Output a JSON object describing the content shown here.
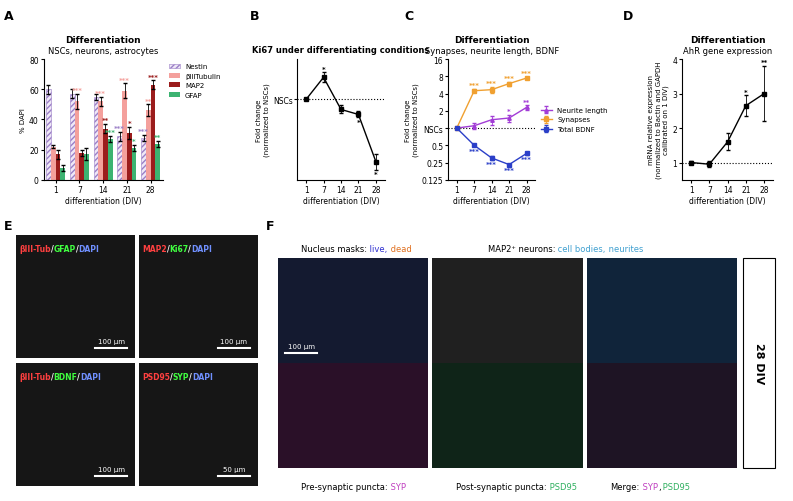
{
  "chart_data": [
    {
      "panel_label": "A",
      "type": "bar",
      "title": "Differentiation",
      "subtitle": "NSCs, neurons, astrocytes",
      "x_label": "differentiation (DIV)",
      "y_label": "% DAPI",
      "categories": [
        "1",
        "7",
        "14",
        "21",
        "28"
      ],
      "ylim": [
        0,
        80
      ],
      "yticks": [
        0,
        20,
        40,
        60,
        80
      ],
      "legend": "upper left",
      "series": [
        {
          "name": "Nestin",
          "color": "#9b7fc7",
          "values": [
            60,
            57,
            55,
            29,
            28
          ],
          "errors": [
            3,
            3,
            2,
            3,
            2
          ],
          "significance": [
            null,
            null,
            null,
            "***",
            "***"
          ]
        },
        {
          "name": "βIIITubulin",
          "color": "#f4a09c",
          "values": [
            22,
            52,
            52,
            59,
            46
          ],
          "errors": [
            1,
            5,
            3,
            5,
            4
          ],
          "significance": [
            null,
            "***",
            "***",
            "***",
            "**"
          ]
        },
        {
          "name": "MAP2",
          "color": "#9b1c1c",
          "values": [
            17,
            18,
            34,
            31,
            63
          ],
          "errors": [
            3,
            2,
            3,
            4,
            3
          ],
          "significance": [
            null,
            null,
            "**",
            "*",
            "***"
          ]
        },
        {
          "name": "GFAP",
          "color": "#3cb371",
          "values": [
            8,
            17,
            27,
            21,
            24
          ],
          "errors": [
            2,
            4,
            2,
            2,
            2
          ],
          "significance": [
            null,
            null,
            "***",
            "*",
            "**"
          ]
        }
      ]
    },
    {
      "panel_label": "B",
      "type": "line",
      "title": "Ki67 under differentiating conditions",
      "x_label": "differentiation (DIV)",
      "y_label": "Fold change\n(normalized to NSCs)",
      "categories": [
        "1",
        "7",
        "14",
        "21",
        "28"
      ],
      "ylim": [
        0.2,
        1.4
      ],
      "yticks": [
        {
          "value": 1,
          "label": "NSCs"
        }
      ],
      "baseline": 1,
      "series": [
        {
          "color": "#000000",
          "marker": "square",
          "values": [
            1,
            1.22,
            0.9,
            0.85,
            0.38
          ],
          "errors": [
            0,
            0.05,
            0.04,
            0.03,
            0.08
          ],
          "significance": [
            null,
            "*",
            null,
            "*",
            "*"
          ]
        }
      ]
    },
    {
      "panel_label": "C",
      "type": "line",
      "title": "Differentiation",
      "subtitle": "Synapses, neurite length, BDNF",
      "x_label": "differentiation (DIV)",
      "y_label": "Fold change\n(normalized to NSCs)",
      "categories": [
        "1",
        "7",
        "14",
        "21",
        "28"
      ],
      "log": "y",
      "ylim": [
        0.125,
        16
      ],
      "yticks": [
        0.125,
        0.25,
        0.5,
        {
          "value": 1,
          "label": "NSCs"
        },
        2,
        4,
        8,
        16
      ],
      "baseline": 1,
      "legend": "center left",
      "series": [
        {
          "name": "Neurite length",
          "color": "#a23cd6",
          "marker": "triangle",
          "values": [
            1,
            1.1,
            1.4,
            1.5,
            2.3
          ],
          "errors": [
            0,
            0.15,
            0.25,
            0.2,
            0.2
          ],
          "significance": [
            null,
            null,
            null,
            "*",
            "**"
          ]
        },
        {
          "name": "Synapses",
          "color": "#f0a030",
          "marker": "square",
          "values": [
            1,
            4.5,
            4.7,
            6,
            7.5
          ],
          "errors": [
            0,
            0.3,
            0.6,
            0.5,
            0.4
          ],
          "significance": [
            null,
            "***",
            "***",
            "***",
            "***"
          ]
        },
        {
          "name": "Total BDNF",
          "color": "#2b3fc8",
          "marker": "square",
          "values": [
            1,
            0.5,
            0.3,
            0.23,
            0.36
          ],
          "errors": [
            0,
            0.02,
            0.02,
            0.01,
            0.02
          ],
          "significance": [
            null,
            "***",
            "***",
            "***",
            "***"
          ]
        }
      ]
    },
    {
      "panel_label": "D",
      "type": "line",
      "title": "Differentiation",
      "subtitle": "AhR gene expression",
      "x_label": "differentiation (DIV)",
      "y_label": "mRNA relative expression\n(normalized to Bactin and GAPDH\ncalibrated on 1 DIV)",
      "categories": [
        "1",
        "7",
        "14",
        "21",
        "28"
      ],
      "ylim": [
        0.5,
        4
      ],
      "yticks": [
        1,
        2,
        3,
        4
      ],
      "baseline": 1,
      "series": [
        {
          "color": "#000000",
          "marker": "square",
          "values": [
            1,
            0.95,
            1.6,
            2.65,
            3.0
          ],
          "errors": [
            0.03,
            0.08,
            0.25,
            0.3,
            0.8
          ],
          "significance": [
            null,
            null,
            null,
            "*",
            "**"
          ]
        }
      ]
    }
  ],
  "panel_E": {
    "panel_label": "E",
    "separator": "/",
    "separator_color": "#ffffff",
    "images": [
      {
        "channels": [
          {
            "text": "βIII-Tub",
            "color": "#ff4040"
          },
          {
            "text": "GFAP",
            "color": "#40ff40"
          },
          {
            "text": "DAPI",
            "color": "#7090ff"
          }
        ],
        "scale_bar": "100 µm"
      },
      {
        "channels": [
          {
            "text": "MAP2",
            "color": "#ff4040"
          },
          {
            "text": "Ki67",
            "color": "#40ff40"
          },
          {
            "text": "DAPI",
            "color": "#7090ff"
          }
        ],
        "scale_bar": "100 µm"
      },
      {
        "channels": [
          {
            "text": "βIII-Tub",
            "color": "#ff4040"
          },
          {
            "text": "BDNF",
            "color": "#40ff40"
          },
          {
            "text": "DAPI",
            "color": "#7090ff"
          }
        ],
        "scale_bar": "100 µm"
      },
      {
        "channels": [
          {
            "text": "PSD95",
            "color": "#ff4040"
          },
          {
            "text": "SYP",
            "color": "#40ff40"
          },
          {
            "text": "DAPI",
            "color": "#7090ff"
          }
        ],
        "scale_bar": "50 µm"
      }
    ]
  },
  "panel_F": {
    "panel_label": "F",
    "side_label": "28 DIV",
    "scale_bar": "100 µm",
    "headers": [
      [
        {
          "text": "Nucleus masks:",
          "color": "#000000"
        },
        {
          "text": " live,",
          "color": "#3030d0"
        },
        {
          "text": " dead",
          "color": "#e07020"
        }
      ],
      [
        {
          "text": "MAP2⁺ neurons:",
          "color": "#000000"
        },
        {
          "text": " cell bodies,",
          "color": "#40a0d0"
        },
        {
          "text": " neurites",
          "color": "#40a0d0"
        }
      ]
    ],
    "footers": [
      [
        {
          "text": "Pre-synaptic puncta:",
          "color": "#000000"
        },
        {
          "text": " SYP",
          "color": "#c040c0"
        }
      ],
      [
        {
          "text": "Post-synaptic puncta:",
          "color": "#000000"
        },
        {
          "text": " PSD95",
          "color": "#30b060"
        }
      ],
      [
        {
          "text": "Merge:",
          "color": "#000000"
        },
        {
          "text": " SYP",
          "color": "#c040c0"
        },
        {
          "text": ",",
          "color": "#000000"
        },
        {
          "text": " PSD95",
          "color": "#30b060"
        }
      ]
    ]
  }
}
